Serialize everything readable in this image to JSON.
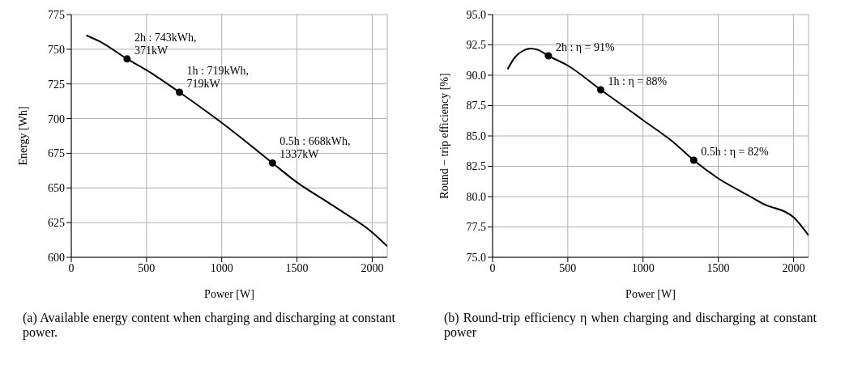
{
  "chart_data": [
    {
      "type": "line",
      "xlabel": "Power [W]",
      "ylabel": "Energy [Wh]",
      "xlim": [
        0,
        2100
      ],
      "xticks": [
        0,
        500,
        1000,
        1500,
        2000
      ],
      "ylim": [
        600,
        775
      ],
      "yticks": [
        600,
        625,
        650,
        675,
        700,
        725,
        750,
        775
      ],
      "grid": true,
      "legend": false,
      "series": [
        {
          "color": "#000000",
          "marker": "none",
          "x": [
            100,
            200,
            371,
            500,
            719,
            900,
            1000,
            1200,
            1337,
            1500,
            1700,
            1800,
            2000,
            2100
          ],
          "values": [
            760,
            755,
            743,
            735,
            719,
            705,
            697,
            680,
            668,
            654,
            640,
            633,
            618,
            608
          ]
        },
        {
          "type": "scatter",
          "color": "#000000",
          "marker": "circle",
          "x": [
            371,
            719,
            1337
          ],
          "values": [
            743,
            719,
            668
          ]
        }
      ],
      "annotations": [
        {
          "text": "2h : 743kWh,\n371kW",
          "x": 371,
          "y": 743
        },
        {
          "text": "1h : 719kWh,\n719kW",
          "x": 719,
          "y": 719
        },
        {
          "text": "0.5h : 668kWh,\n1337kW",
          "x": 1337,
          "y": 668
        },
        "(a) Available energy content when charging and discharging at constant power."
      ]
    },
    {
      "type": "line",
      "xlabel": "Power [W]",
      "ylabel": "Round − trip efficiency [%]",
      "xlim": [
        0,
        2100
      ],
      "xticks": [
        0,
        500,
        1000,
        1500,
        2000
      ],
      "ylim": [
        75,
        95
      ],
      "yticks": [
        {
          "value": 75,
          "label": "75.0"
        },
        {
          "value": 77.5,
          "label": "77.5"
        },
        {
          "value": 80,
          "label": "80.0"
        },
        {
          "value": 82.5,
          "label": "82.5"
        },
        {
          "value": 85,
          "label": "85.0"
        },
        {
          "value": 87.5,
          "label": "87.5"
        },
        {
          "value": 90,
          "label": "90.0"
        },
        {
          "value": 92.5,
          "label": "92.5"
        },
        {
          "value": 95,
          "label": "95.0"
        }
      ],
      "grid": true,
      "legend": false,
      "series": [
        {
          "color": "#000000",
          "marker": "none",
          "x": [
            100,
            150,
            200,
            250,
            300,
            371,
            500,
            719,
            900,
            1000,
            1200,
            1337,
            1500,
            1700,
            1800,
            2000,
            2100
          ],
          "values": [
            90.5,
            91.5,
            92,
            92.2,
            92.1,
            91.6,
            90.8,
            88.8,
            87.2,
            86.3,
            84.5,
            83,
            81.5,
            80.1,
            79.4,
            78.3,
            76.8
          ]
        },
        {
          "type": "scatter",
          "color": "#000000",
          "marker": "circle",
          "x": [
            371,
            719,
            1337
          ],
          "values": [
            91.6,
            88.8,
            83
          ]
        }
      ],
      "annotations": [
        {
          "text": "2h : η = 91%",
          "x": 371,
          "y": 91.6
        },
        {
          "text": "1h : η = 88%",
          "x": 719,
          "y": 88.8
        },
        {
          "text": "0.5h : η = 82%",
          "x": 1337,
          "y": 83
        },
        "(b) Round-trip efficiency η when charging and discharging at constant power"
      ]
    }
  ]
}
